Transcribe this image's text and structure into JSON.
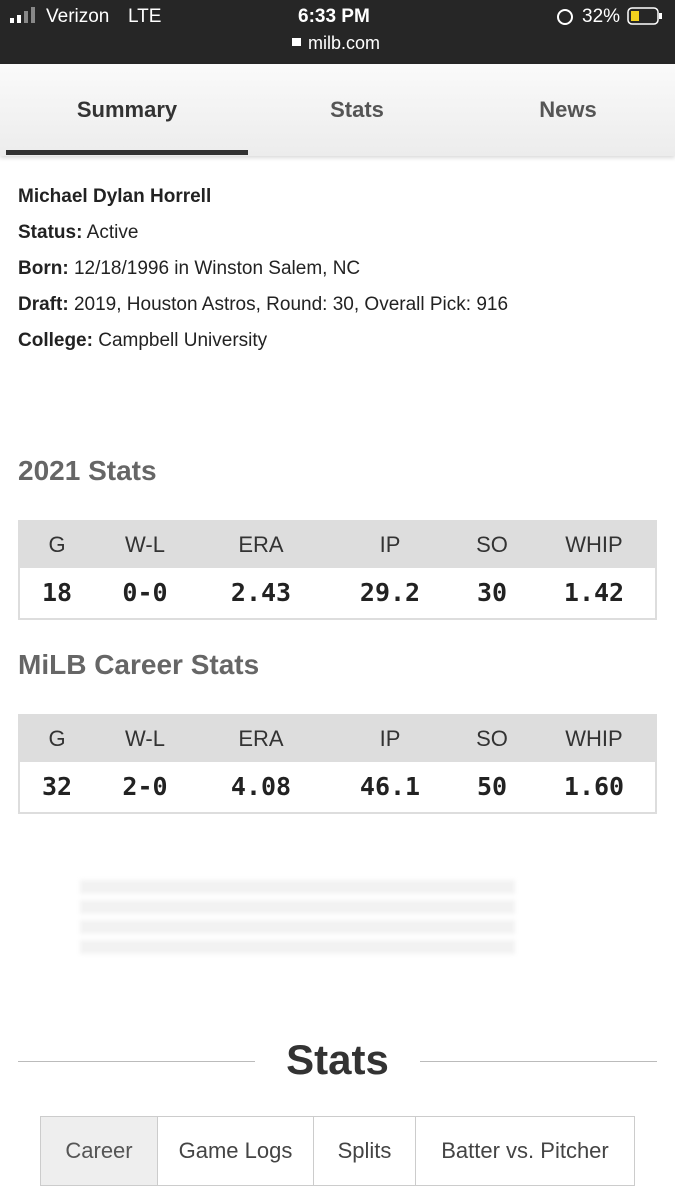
{
  "status_bar": {
    "carrier": "Verizon",
    "network": "LTE",
    "time": "6:33 PM",
    "battery": "32%",
    "url": "milb.com"
  },
  "tabs": [
    "Summary",
    "Stats",
    "News"
  ],
  "bio": {
    "name": "Michael Dylan Horrell",
    "fields": [
      {
        "label": "Status:",
        "value": "Active"
      },
      {
        "label": "Born:",
        "value": "12/18/1996 in Winston Salem, NC"
      },
      {
        "label": "Draft:",
        "value": "2019, Houston Astros, Round: 30, Overall Pick: 916"
      },
      {
        "label": "College:",
        "value": "Campbell University"
      }
    ]
  },
  "tables": [
    {
      "title": "2021 Stats",
      "columns": [
        "G",
        "W-L",
        "ERA",
        "IP",
        "SO",
        "WHIP"
      ],
      "row": [
        "18",
        "0-0",
        "2.43",
        "29.2",
        "30",
        "1.42"
      ]
    },
    {
      "title": "MiLB Career Stats",
      "columns": [
        "G",
        "W-L",
        "ERA",
        "IP",
        "SO",
        "WHIP"
      ],
      "row": [
        "32",
        "2-0",
        "4.08",
        "46.1",
        "50",
        "1.60"
      ]
    }
  ],
  "stats_section": {
    "title": "Stats",
    "tabs": [
      "Career",
      "Game Logs",
      "Splits",
      "Batter vs. Pitcher"
    ]
  }
}
